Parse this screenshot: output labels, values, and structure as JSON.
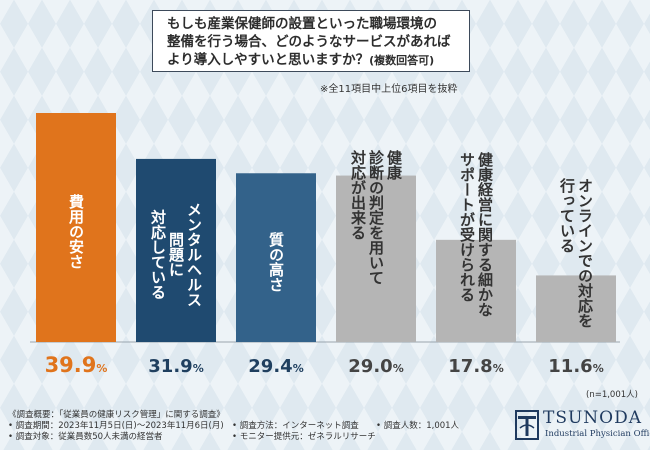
{
  "question": {
    "line1": "もしも産業保健師の設置といった職場環境の",
    "line2": "整備を行う場合、どのようなサービスがあれば",
    "line3_main": "より導入しやすいと思いますか？",
    "line3_note": "(複数回答可)"
  },
  "note": "※全11項目中上位6項目を抜粋",
  "sample_note": "(n=1,001人)",
  "chart_data": {
    "type": "bar",
    "categories": [
      "費用の安さ",
      "メンタルヘルス問題に対応している",
      "質の高さ",
      "健康診断の判定を用いて対応が出来る",
      "健康経営に関する細かなサポートが受けられる",
      "オンラインでの対応を行っている"
    ],
    "label_lines": [
      [
        "費用の安さ"
      ],
      [
        "メンタルヘルス",
        "問題に",
        "対応している"
      ],
      [
        "質の高さ"
      ],
      [
        "健康",
        "診断の判定を用いて",
        "対応が出来る"
      ],
      [
        "健康経営に関する細かな",
        "サポートが受けられる"
      ],
      [
        "オンラインでの対応を",
        "行っている"
      ]
    ],
    "values": [
      39.9,
      31.9,
      29.4,
      29.0,
      17.8,
      11.6
    ],
    "value_labels": [
      {
        "main": "39.9",
        "unit": "%"
      },
      {
        "main": "31.9",
        "unit": "%"
      },
      {
        "main": "29.4",
        "unit": "%"
      },
      {
        "main": "29.0",
        "unit": "%"
      },
      {
        "main": "17.8",
        "unit": "%"
      },
      {
        "main": "11.6",
        "unit": "%"
      }
    ],
    "unit": "%",
    "ylim": [
      0,
      40
    ],
    "bar_colors": [
      "#e0741c",
      "#1f4a70",
      "#33628a",
      "#b5b5b5",
      "#b5b5b5",
      "#b5b5b5"
    ],
    "pct_colors": [
      "#e0741c",
      "#1f3f5f",
      "#1f3f5f",
      "#444444",
      "#444444",
      "#444444"
    ],
    "label_colors": [
      "#ffffff",
      "#ffffff",
      "#ffffff",
      "#333333",
      "#333333",
      "#333333"
    ]
  },
  "footer": {
    "col1": [
      "《調査概要：「従業員の健康リスク管理」に関する調査》",
      "• 調査期間：2023年11月5日(日)～2023年11月6日(月)",
      "• 調査対象：従業員数50人未満の経営者"
    ],
    "col2": [
      "• 調査方法：インターネット調査",
      "• モニター提供元：ゼネラルリサーチ"
    ],
    "col3": [
      "• 調査人数：1,001人"
    ]
  },
  "logo": {
    "name": "TSUNODA",
    "sub": "Industrial Physician Office",
    "color": "#1f3a5f"
  }
}
